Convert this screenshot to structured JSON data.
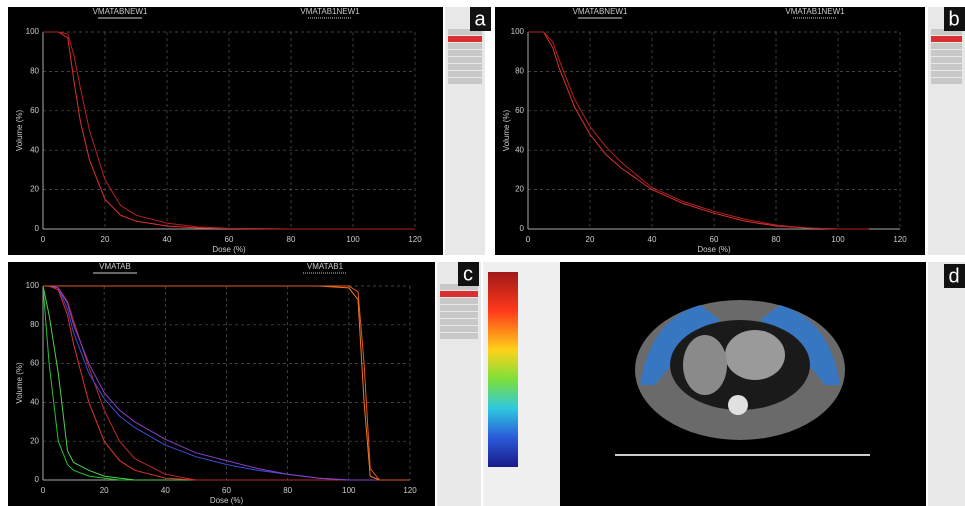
{
  "chart_data": [
    {
      "type": "line",
      "panel_label": "a",
      "legend_labels": [
        "VMATABNEW1",
        "VMATAB1NEW1"
      ],
      "xlabel": "Dose (%)",
      "ylabel": "Volume (%)",
      "x": [
        0,
        5,
        8,
        10,
        12,
        15,
        20,
        25,
        30,
        40,
        50,
        60,
        80,
        100,
        120
      ],
      "series": [
        {
          "color": "#e03030",
          "values": [
            100,
            100,
            97,
            75,
            55,
            35,
            15,
            7,
            4,
            1.5,
            0.5,
            0.2,
            0,
            0,
            0
          ]
        },
        {
          "color": "#b82020",
          "values": [
            100,
            100,
            99,
            88,
            72,
            50,
            25,
            12,
            7,
            3,
            1,
            0.3,
            0,
            0,
            0
          ]
        }
      ],
      "xlim": [
        0,
        120
      ],
      "ylim": [
        0,
        100
      ],
      "xticks": [
        0,
        20,
        40,
        60,
        80,
        100,
        120
      ],
      "yticks": [
        0,
        20,
        40,
        60,
        80,
        100
      ],
      "grid": true
    },
    {
      "type": "line",
      "panel_label": "b",
      "legend_labels": [
        "VMATABNEW1",
        "VMATAB1NEW1"
      ],
      "xlabel": "Dose (%)",
      "ylabel": "Volume (%)",
      "x": [
        0,
        5,
        8,
        10,
        15,
        20,
        25,
        30,
        40,
        50,
        60,
        70,
        80,
        90,
        100,
        110
      ],
      "series": [
        {
          "color": "#e03030",
          "values": [
            100,
            100,
            92,
            82,
            62,
            48,
            38,
            31,
            20,
            13,
            8,
            4,
            1.5,
            0.5,
            0,
            0
          ]
        },
        {
          "color": "#b82020",
          "values": [
            100,
            100,
            95,
            86,
            66,
            52,
            42,
            34,
            21,
            14,
            9,
            5,
            2,
            0.5,
            0,
            0
          ]
        }
      ],
      "xlim": [
        0,
        120
      ],
      "ylim": [
        0,
        100
      ],
      "xticks": [
        0,
        20,
        40,
        60,
        80,
        100,
        120
      ],
      "yticks": [
        0,
        20,
        40,
        60,
        80,
        100
      ],
      "grid": true
    },
    {
      "type": "line",
      "panel_label": "c",
      "legend_labels": [
        "VMATAB",
        "VMATAB1"
      ],
      "xlabel": "Dose (%)",
      "ylabel": "Volume (%)",
      "x": [
        0,
        2,
        5,
        8,
        10,
        15,
        20,
        25,
        30,
        40,
        50,
        60,
        70,
        80,
        90,
        100,
        103,
        105,
        107,
        110,
        120
      ],
      "series": [
        {
          "color": "#2ec02e",
          "values": [
            100,
            60,
            20,
            8,
            5,
            2,
            1,
            0,
            0,
            0,
            0,
            0,
            0,
            0,
            0,
            0,
            0,
            0,
            0,
            0,
            0
          ]
        },
        {
          "color": "#4fd04f",
          "values": [
            100,
            85,
            55,
            15,
            9,
            5,
            2,
            1,
            0,
            0,
            0,
            0,
            0,
            0,
            0,
            0,
            0,
            0,
            0,
            0,
            0
          ]
        },
        {
          "color": "#e03030",
          "values": [
            100,
            100,
            98,
            85,
            70,
            40,
            20,
            10,
            5,
            1,
            0,
            0,
            0,
            0,
            0,
            0,
            0,
            0,
            0,
            0,
            0
          ]
        },
        {
          "color": "#c02828",
          "values": [
            100,
            100,
            99,
            92,
            82,
            58,
            36,
            20,
            11,
            3,
            0,
            0,
            0,
            0,
            0,
            0,
            0,
            0,
            0,
            0,
            0
          ]
        },
        {
          "color": "#3a4fd8",
          "values": [
            100,
            100,
            99,
            88,
            76,
            55,
            42,
            33,
            27,
            18,
            12,
            8,
            5,
            3,
            1,
            0,
            0,
            0,
            0,
            0,
            0
          ]
        },
        {
          "color": "#8a40c8",
          "values": [
            100,
            100,
            99,
            91,
            80,
            60,
            45,
            36,
            30,
            21,
            14,
            10,
            6,
            3,
            1,
            0,
            0,
            0,
            0,
            0,
            0
          ]
        },
        {
          "color": "#f07820",
          "values": [
            100,
            100,
            100,
            100,
            100,
            100,
            100,
            100,
            100,
            100,
            100,
            100,
            100,
            100,
            100,
            99,
            93,
            40,
            2,
            0,
            0
          ]
        },
        {
          "color": "#e85a20",
          "values": [
            100,
            100,
            100,
            100,
            100,
            100,
            100,
            100,
            100,
            100,
            100,
            100,
            100,
            100,
            100,
            100,
            97,
            60,
            6,
            0,
            0
          ]
        }
      ],
      "xlim": [
        0,
        120
      ],
      "ylim": [
        0,
        100
      ],
      "xticks": [
        0,
        20,
        40,
        60,
        80,
        100,
        120
      ],
      "yticks": [
        0,
        20,
        40,
        60,
        80,
        100
      ],
      "grid": true
    }
  ],
  "panel_d": {
    "label": "d"
  }
}
